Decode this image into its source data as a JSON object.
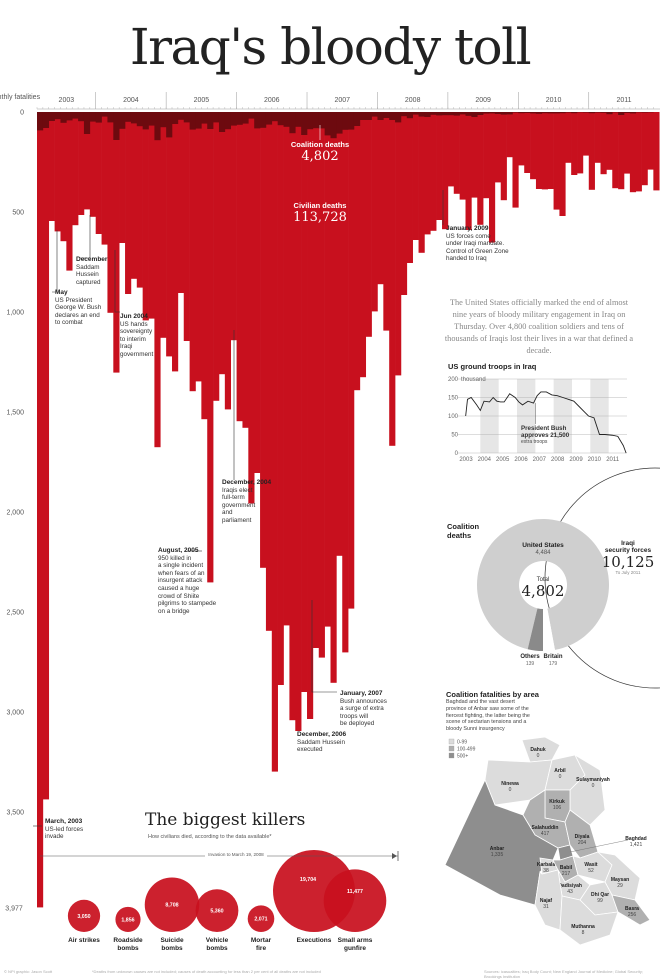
{
  "title": "Iraq's bloody toll",
  "colors": {
    "civilian": "#c8101e",
    "coalition": "#6d0a0f",
    "map_low": "#dcdcdc",
    "map_mid": "#b0b0b0",
    "map_high": "#8e8e8e",
    "donut": "#cfcfcf"
  },
  "chart_data": [
    {
      "type": "bar",
      "ylabel": "Monthly fatalities",
      "yticks": [
        "0",
        "500",
        "1,000",
        "1,500",
        "2,000",
        "2,500",
        "3,000",
        "3,500"
      ],
      "ylim": [
        0,
        3977
      ],
      "y_max_label": "3,977",
      "years": [
        "2003",
        "2004",
        "2005",
        "2006",
        "2007",
        "2008",
        "2009",
        "2010",
        "2011"
      ],
      "start_month": "2003-03",
      "series": [
        {
          "name": "Civilian deaths",
          "total": "113,728",
          "values": [
            3977,
            3437,
            545,
            597,
            646,
            793,
            566,
            515,
            487,
            524,
            610,
            663,
            1004,
            1303,
            655,
            910,
            834,
            878,
            1042,
            1033,
            1676,
            1129,
            1222,
            1297,
            905,
            1145,
            1396,
            1347,
            1536,
            2352,
            1444,
            1311,
            1487,
            1141,
            1546,
            1579,
            1957,
            1805,
            2279,
            2594,
            3298,
            2865,
            2567,
            3041,
            3095,
            2900,
            3035,
            2680,
            2728,
            2573,
            2854,
            2219,
            2702,
            2483,
            1391,
            1326,
            1124,
            997,
            861,
            1093,
            1669,
            1317,
            915,
            755,
            640,
            704,
            612,
            594,
            540,
            586,
            372,
            409,
            438,
            590,
            428,
            564,
            431,
            653,
            352,
            441,
            226,
            478,
            267,
            305,
            336,
            385,
            387,
            385,
            488,
            520,
            254,
            315,
            307,
            218,
            389,
            254,
            311,
            289,
            381,
            386,
            308,
            401,
            397,
            366,
            288,
            392
          ]
        },
        {
          "name": "Coalition deaths",
          "total": "4,802",
          "values": [
            92,
            80,
            45,
            36,
            54,
            42,
            33,
            46,
            110,
            48,
            53,
            23,
            52,
            140,
            84,
            49,
            57,
            71,
            87,
            68,
            141,
            76,
            127,
            60,
            39,
            52,
            88,
            83,
            58,
            85,
            52,
            100,
            86,
            68,
            64,
            58,
            33,
            82,
            79,
            63,
            46,
            66,
            74,
            106,
            74,
            115,
            86,
            81,
            82,
            117,
            131,
            108,
            89,
            88,
            70,
            40,
            40,
            23,
            40,
            30,
            40,
            52,
            21,
            31,
            13,
            23,
            25,
            14,
            17,
            16,
            16,
            18,
            12,
            19,
            25,
            15,
            8,
            7,
            10,
            13,
            12,
            3,
            6,
            5,
            7,
            9,
            6,
            7,
            7,
            6,
            3,
            6,
            2,
            3,
            6,
            3,
            4,
            11,
            2,
            15,
            5,
            7,
            2,
            3,
            2,
            0
          ]
        }
      ]
    },
    {
      "type": "line",
      "title": "US ground troops in Iraq",
      "yunit": "thousand",
      "yticks": [
        "200",
        "150",
        "100",
        "50",
        "0"
      ],
      "ylim": [
        0,
        200
      ],
      "xticks": [
        "2003",
        "2004",
        "2005",
        "2006",
        "2007",
        "2008",
        "2009",
        "2010",
        "2011"
      ],
      "x": [
        2003.2,
        2003.3,
        2003.5,
        2003.8,
        2004.0,
        2004.2,
        2004.5,
        2004.7,
        2004.9,
        2005.1,
        2005.3,
        2005.6,
        2005.9,
        2006.1,
        2006.3,
        2006.6,
        2006.9,
        2007.1,
        2007.3,
        2007.6,
        2007.9,
        2008.2,
        2008.5,
        2008.8,
        2009.1,
        2009.4,
        2009.7,
        2009.9,
        2010.2,
        2010.5,
        2010.8,
        2011.2,
        2011.5,
        2011.8,
        2011.95
      ],
      "values": [
        100,
        145,
        150,
        130,
        115,
        140,
        138,
        150,
        140,
        138,
        138,
        160,
        150,
        138,
        130,
        140,
        135,
        155,
        165,
        165,
        157,
        155,
        150,
        145,
        140,
        125,
        110,
        100,
        95,
        50,
        50,
        48,
        45,
        20,
        0
      ],
      "annotation": {
        "title": "President Bush",
        "line2": "approves 21,500",
        "line3": "extra troops"
      }
    },
    {
      "type": "pie",
      "title": "Coalition deaths",
      "total_label": "Total",
      "total": "4,802",
      "slices": [
        {
          "name": "United States",
          "value": 4484,
          "label": "4,484"
        },
        {
          "name": "Britain",
          "value": 179,
          "label": "179"
        },
        {
          "name": "Others",
          "value": 139,
          "label": "139"
        }
      ],
      "comparison": {
        "name": "Iraqi security forces",
        "line1": "Iraqi",
        "line2": "security forces",
        "value": "10,125",
        "note": "To July 2011"
      }
    },
    {
      "type": "bubble",
      "title": "The biggest killers",
      "subtitle": "How civilians died, according to the data available*",
      "range_label": "Invasion to March 19, 2008",
      "categories": [
        "Air strikes",
        "Roadside bombs",
        "Suicide bombs",
        "Vehicle bombs",
        "Mortar fire",
        "Executions",
        "Small arms gunfire"
      ],
      "values": [
        3050,
        1856,
        8708,
        5360,
        2071,
        19704,
        11477
      ],
      "labels": [
        "3,050",
        "1,856",
        "8,708",
        "5,360",
        "2,071",
        "19,704",
        "11,477"
      ],
      "cat_lines": [
        [
          "Air strikes",
          ""
        ],
        [
          "Roadside",
          "bombs"
        ],
        [
          "Suicide",
          "bombs"
        ],
        [
          "Vehicle",
          "bombs"
        ],
        [
          "Mortar",
          "fire"
        ],
        [
          "Executions",
          ""
        ],
        [
          "Small arms",
          "gunfire"
        ]
      ]
    }
  ],
  "labels": {
    "coalition_title": "Coalition deaths",
    "coalition_total": "4,802",
    "civilian_title": "Civilian deaths",
    "civilian_total": "113,728"
  },
  "annotations": [
    {
      "title": "December",
      "lines": [
        "Saddam",
        "Hussein",
        "captured"
      ]
    },
    {
      "title": "May",
      "lines": [
        "US President",
        "George W. Bush",
        "declares an end",
        "to combat"
      ]
    },
    {
      "title": "Jun 2004",
      "lines": [
        "US hands",
        "sovereignty",
        "to interim",
        "Iraqi",
        "government"
      ]
    },
    {
      "title": "December, 2004",
      "lines": [
        "Iraqis elect",
        "full-term",
        "government",
        "and",
        "parliament"
      ]
    },
    {
      "title": "August, 2005",
      "lines": [
        "950 killed in",
        "a single incident",
        "when fears of an",
        "insurgent attack",
        "caused a huge",
        "crowd of Shiite",
        "pilgrims to stampede",
        "on a bridge"
      ]
    },
    {
      "title": "January, 2007",
      "lines": [
        "Bush announces",
        "a surge of extra",
        "troops will",
        "be deployed"
      ]
    },
    {
      "title": "December, 2006",
      "lines": [
        "Saddam Hussein",
        "executed"
      ]
    },
    {
      "title": "January, 2009",
      "lines": [
        "US forces come",
        "under Iraqi mandate.",
        "Control of Green Zone",
        "handed to Iraq"
      ]
    },
    {
      "title": "March, 2003",
      "lines": [
        "US-led forces",
        "invade"
      ]
    }
  ],
  "intro": "The United States officially marked the end of almost nine years of bloody military engagement in Iraq on Thursday. Over 4,800 coalition soldiers and tens of thousands of Iraqis lost their lives in a war that defined a decade.",
  "map": {
    "title": "Coalition fatalities by area",
    "description": "Baghdad and the vast desert province of Anbar saw some of the fiercest fighting, the latter being the scene of sectarian tensions and a bloody Sunni insurgency",
    "legend": [
      "0-99",
      "100-499",
      "500+"
    ],
    "regions": [
      {
        "name": "Dahuk",
        "value": "0"
      },
      {
        "name": "Ninewa",
        "value": "0"
      },
      {
        "name": "Arbil",
        "value": "0"
      },
      {
        "name": "Sulaymaniyah",
        "value": "0"
      },
      {
        "name": "Kirkuk",
        "value": "106"
      },
      {
        "name": "Salahuddin",
        "value": "417"
      },
      {
        "name": "Diyala",
        "value": "204"
      },
      {
        "name": "Anbar",
        "value": "1,335"
      },
      {
        "name": "Baghdad",
        "value": "1,421"
      },
      {
        "name": "Karbala",
        "value": "38"
      },
      {
        "name": "Babil",
        "value": "217"
      },
      {
        "name": "Wasit",
        "value": "52"
      },
      {
        "name": "Qadisiyah",
        "value": "43"
      },
      {
        "name": "Maysan",
        "value": "29"
      },
      {
        "name": "Najaf",
        "value": "31"
      },
      {
        "name": "Dhi Qar",
        "value": "99"
      },
      {
        "name": "Basra",
        "value": "256"
      },
      {
        "name": "Muthanna",
        "value": "8"
      }
    ]
  },
  "footer": {
    "credit": "© NPI graphic: Jason Scott",
    "note": "*Deaths from unknown causes are not included; causes of death accounting for less than 2 per cent of all deaths are not included",
    "sources": "Sources: icasualties; Iraq Body Count; New England Journal of Medicine; Global Security; Brookings Institution"
  }
}
